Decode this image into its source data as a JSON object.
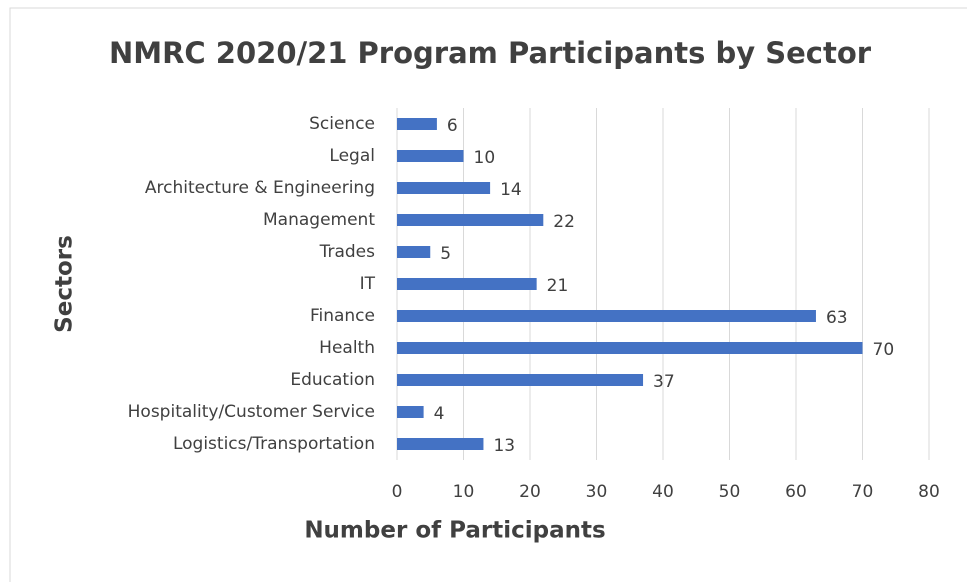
{
  "chart_data": {
    "type": "bar",
    "orientation": "horizontal",
    "title": "NMRC 2020/21 Program Participants by Sector",
    "x_label": "Number of Participants",
    "y_label": "Sectors",
    "categories": [
      "Science",
      "Legal",
      "Architecture & Engineering",
      "Management",
      "Trades",
      "IT",
      "Finance",
      "Health",
      "Education",
      "Hospitality/Customer Service",
      "Logistics/Transportation"
    ],
    "values": [
      6,
      10,
      14,
      22,
      5,
      21,
      63,
      70,
      37,
      4,
      13
    ],
    "color": "#4472c4",
    "xlim": [
      0,
      80
    ],
    "xticks": [
      0,
      10,
      20,
      30,
      40,
      50,
      60,
      70,
      80
    ],
    "grid": true
  }
}
